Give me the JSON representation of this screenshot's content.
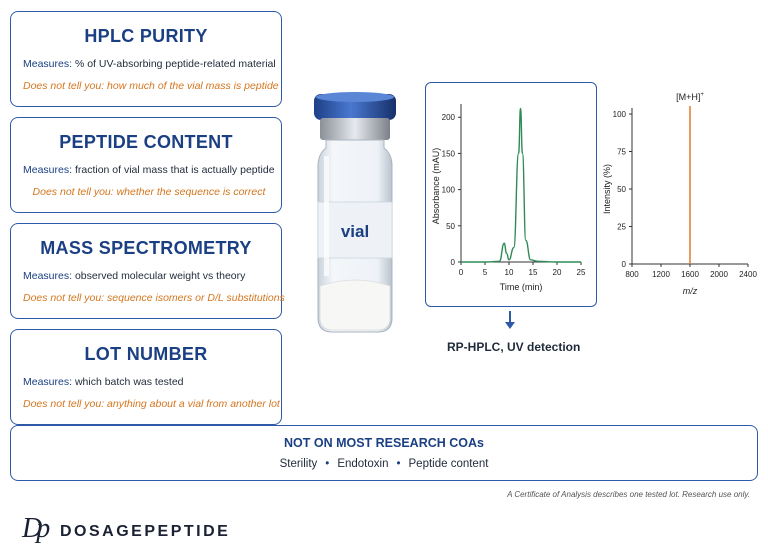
{
  "cards": [
    {
      "title": "HPLC PURITY",
      "measures_label": "Measures:",
      "measures_text": "% of UV-absorbing peptide-related material",
      "limits": "Does not tell you: how much of the vial mass is peptide"
    },
    {
      "title": "PEPTIDE CONTENT",
      "measures_label": "Measures:",
      "measures_text": "fraction of vial mass that is actually peptide",
      "limits": "Does not tell you: whether the sequence is correct"
    },
    {
      "title": "MASS SPECTROMETRY",
      "measures_label": "Measures:",
      "measures_text": "observed molecular weight vs theory",
      "limits": "Does not tell you: sequence isomers or D/L substitutions"
    },
    {
      "title": "LOT NUMBER",
      "measures_label": "Measures:",
      "measures_text": "which batch was tested",
      "limits": "Does not tell you: anything about a vial from another lot"
    }
  ],
  "vial": {
    "label": "vial"
  },
  "hplc": {
    "caption": "RP-HPLC, UV detection",
    "chart_data": {
      "type": "line",
      "xlabel": "Time (min)",
      "ylabel": "Absorbance (mAU)",
      "xlim": [
        0,
        25
      ],
      "ylim": [
        0,
        210
      ],
      "xticks": [
        0,
        5,
        10,
        15,
        20,
        25
      ],
      "yticks": [
        0,
        50,
        100,
        150,
        200
      ],
      "series": [
        {
          "values": [
            [
              0,
              0
            ],
            [
              5,
              0
            ],
            [
              8,
              1
            ],
            [
              9,
              26
            ],
            [
              9.5,
              12
            ],
            [
              10,
              3
            ],
            [
              11,
              20
            ],
            [
              12,
              150
            ],
            [
              12.4,
              212
            ],
            [
              12.8,
              150
            ],
            [
              13.5,
              30
            ],
            [
              14.5,
              3
            ],
            [
              16,
              1
            ],
            [
              20,
              0
            ],
            [
              25,
              0
            ]
          ]
        }
      ],
      "color": "#2e8b57"
    }
  },
  "ms": {
    "chart_data": {
      "type": "bar",
      "xlabel": "m/z",
      "ylabel": "Intensity (%)",
      "xlim": [
        800,
        2400
      ],
      "ylim": [
        0,
        100
      ],
      "xticks": [
        800,
        1200,
        1600,
        2000,
        2400
      ],
      "yticks": [
        0,
        25,
        50,
        75,
        100
      ],
      "peaks": [
        {
          "x": 1600,
          "y": 100,
          "label": "[M+H]",
          "superscript": "+"
        }
      ],
      "color": "#e07b2a"
    }
  },
  "bottom": {
    "title": "NOT ON MOST RESEARCH COAs",
    "items": [
      "Sterility",
      "Endotoxin",
      "Peptide content"
    ],
    "separator": "•"
  },
  "footnote": "A Certificate of Analysis describes one tested lot. Research use only.",
  "brand": {
    "mark": "Dp",
    "name_part1": "DOSAGE",
    "name_part2": "PEPTIDE"
  }
}
